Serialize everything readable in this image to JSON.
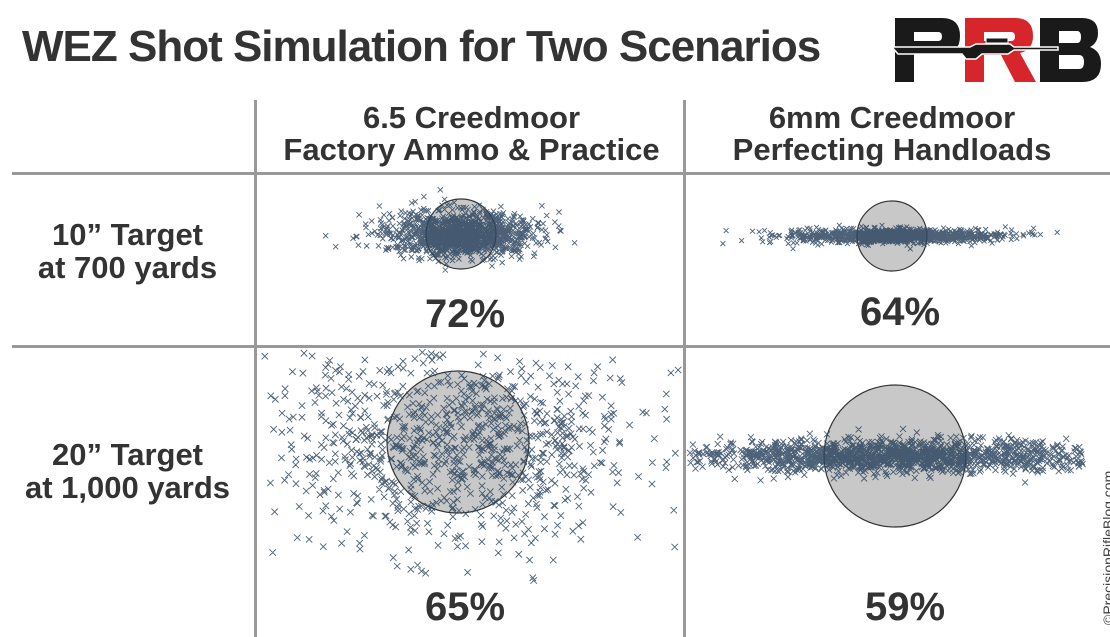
{
  "title": "WEZ Shot Simulation for Two Scenarios",
  "logo": {
    "letters": "PRB",
    "colors": {
      "dark": "#1a1a1a",
      "red": "#d6262b"
    }
  },
  "columns": [
    {
      "line1": "6.5 Creedmoor",
      "line2": "Factory Ammo & Practice"
    },
    {
      "line1": "6mm Creedmoor",
      "line2": "Perfecting Handloads"
    }
  ],
  "rows": [
    {
      "line1": "10” Target",
      "line2": "at 700 yards"
    },
    {
      "line1": "20” Target",
      "line2": "at 1,000 yards"
    }
  ],
  "results": [
    [
      "72%",
      "64%"
    ],
    [
      "65%",
      "59%"
    ]
  ],
  "copyright": "©PrecisionRifleBlog.com",
  "colors": {
    "shots": "#2e4660",
    "target_fill": "#c8c8c8",
    "target_stroke": "#333333",
    "grid": "#999999"
  }
}
